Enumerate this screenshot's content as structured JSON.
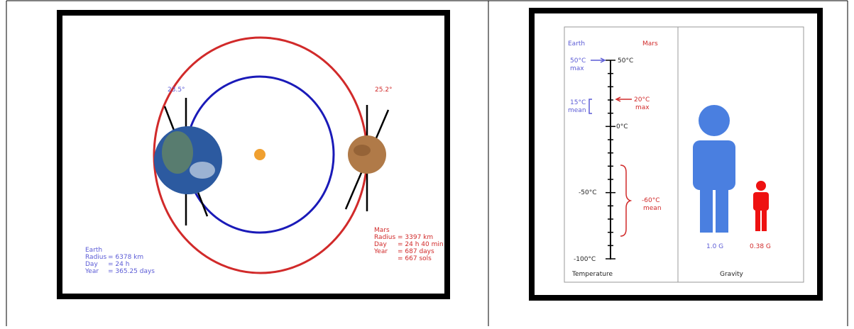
{
  "orbit_figure": {
    "earth_tilt": "23.5°",
    "mars_tilt": "25.2°",
    "earth_info": {
      "title": "Earth",
      "rows": [
        [
          "Radius",
          "= 6378 km"
        ],
        [
          "Day",
          "= 24 h"
        ],
        [
          "Year",
          "= 365.25 days"
        ]
      ]
    },
    "mars_info": {
      "title": "Mars",
      "rows": [
        [
          "Radius",
          "= 3397 km"
        ],
        [
          "Day",
          "= 24 h 40 min"
        ],
        [
          "Year",
          "= 687 days"
        ]
      ],
      "extra": "= 667 sols"
    }
  },
  "comparison_figure": {
    "temperature": {
      "earth_label": "Earth",
      "mars_label": "Mars",
      "scale": [
        "50°C",
        "0°C",
        "-50°C",
        "-100°C"
      ],
      "earth_max": [
        "50°C",
        "max"
      ],
      "earth_mean": [
        "15°C",
        "mean"
      ],
      "mars_max": [
        "20°C",
        "max"
      ],
      "mars_mean": [
        "-60°C",
        "mean"
      ],
      "axis_label": "Temperature"
    },
    "gravity": {
      "axis_label": "Gravity",
      "earth": "1.0 G",
      "mars": "0.38 G"
    }
  }
}
